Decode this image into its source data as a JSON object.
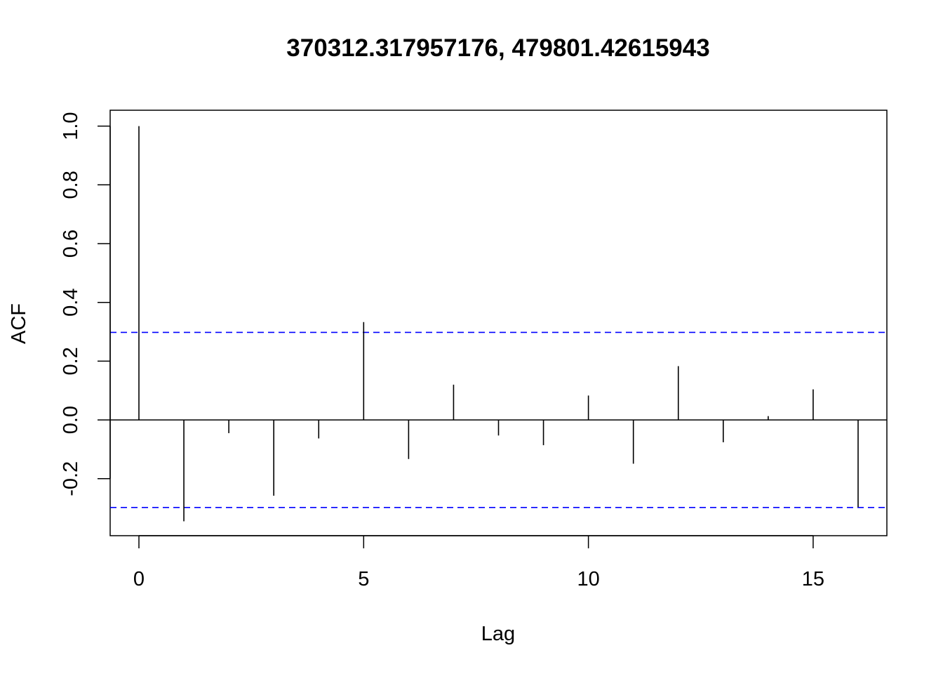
{
  "chart_data": {
    "type": "bar",
    "title": "370312.317957176, 479801.42615943",
    "xlabel": "Lag",
    "ylabel": "ACF",
    "xlim": [
      -0.64,
      16.64
    ],
    "ylim": [
      -0.394,
      1.054
    ],
    "x_ticks": [
      0,
      5,
      10,
      15
    ],
    "x_tick_labels": [
      "0",
      "5",
      "10",
      "15"
    ],
    "y_ticks": [
      -0.2,
      0.0,
      0.2,
      0.4,
      0.6,
      0.8,
      1.0
    ],
    "y_tick_labels": [
      "-0.2",
      "0.0",
      "0.2",
      "0.4",
      "0.6",
      "0.8",
      "1.0"
    ],
    "lags": [
      0,
      1,
      2,
      3,
      4,
      5,
      6,
      7,
      8,
      9,
      10,
      11,
      12,
      13,
      14,
      15,
      16
    ],
    "acf": [
      1.0,
      -0.345,
      -0.045,
      -0.258,
      -0.063,
      0.333,
      -0.133,
      0.12,
      -0.053,
      -0.086,
      0.083,
      -0.149,
      0.183,
      -0.076,
      0.013,
      0.104,
      -0.297
    ],
    "confidence_limit": 0.298,
    "confidence_color": "#0000ff",
    "grid": false,
    "legend": "none"
  }
}
